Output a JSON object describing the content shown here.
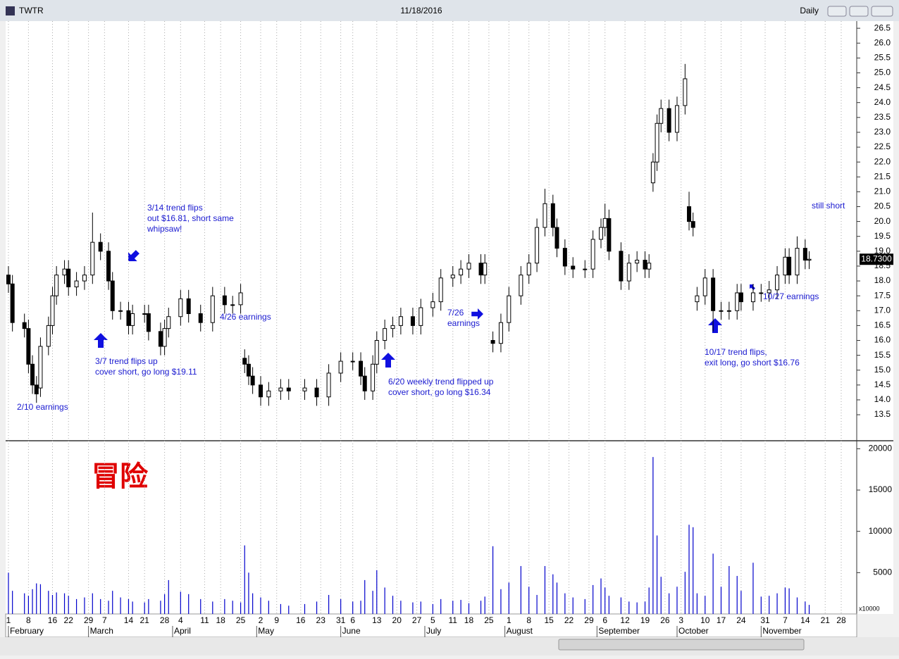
{
  "window": {
    "symbol": "TWTR",
    "date": "11/18/2016",
    "interval": "Daily"
  },
  "watermark": "冒险",
  "chart_data": [
    {
      "type": "candlestick",
      "x": [
        0,
        1,
        4,
        5,
        6,
        7,
        8,
        10,
        11,
        12,
        14,
        15,
        17,
        19,
        21,
        23,
        25,
        26,
        28,
        30,
        31,
        34,
        35,
        38,
        39,
        40,
        43,
        45,
        48,
        51,
        54,
        56,
        58,
        59,
        60,
        61,
        63,
        65,
        68,
        70,
        74,
        77,
        80,
        83,
        86,
        88,
        89,
        91,
        92,
        94,
        96,
        98,
        101,
        103,
        106,
        108,
        111,
        113,
        115,
        118,
        119,
        121,
        123,
        125,
        128,
        130,
        132,
        134,
        136,
        137,
        139,
        141,
        144,
        146,
        148,
        149,
        150,
        153,
        155,
        157,
        159,
        160,
        161,
        162,
        163,
        165,
        167,
        169,
        170,
        171,
        172,
        174,
        176,
        178,
        180,
        182,
        183,
        186,
        188,
        190,
        192,
        194,
        195,
        197,
        199,
        200
      ],
      "open": [
        18.2,
        17.9,
        16.6,
        16.4,
        15.2,
        14.5,
        14.4,
        15.8,
        16.5,
        17.5,
        18.2,
        18.4,
        17.8,
        18.0,
        18.2,
        19.3,
        19.0,
        18.0,
        17.0,
        17.0,
        16.5,
        16.9,
        16.9,
        16.3,
        15.8,
        16.4,
        16.8,
        17.4,
        16.9,
        16.6,
        17.5,
        17.2,
        17.2,
        15.4,
        15.2,
        14.8,
        14.5,
        14.1,
        14.3,
        14.4,
        14.3,
        14.4,
        14.1,
        14.9,
        15.3,
        15.3,
        14.8,
        14.3,
        15.2,
        16.0,
        16.4,
        16.5,
        16.8,
        16.5,
        17.1,
        17.3,
        18.1,
        18.2,
        18.4,
        18.6,
        18.2,
        16.0,
        15.9,
        16.6,
        17.5,
        18.2,
        18.6,
        19.8,
        20.6,
        19.8,
        19.1,
        18.5,
        18.4,
        18.4,
        19.4,
        19.8,
        20.1,
        19.0,
        18.0,
        18.6,
        18.7,
        18.4,
        21.3,
        22.0,
        23.3,
        23.8,
        23.0,
        23.9,
        20.5,
        20.0,
        17.3,
        17.5,
        18.1,
        17.0,
        17.0,
        17.0,
        17.6,
        17.3,
        17.6,
        17.6,
        17.7,
        18.2,
        18.8,
        18.2,
        19.1,
        18.7
      ],
      "high": [
        18.5,
        18.2,
        16.9,
        16.7,
        15.5,
        14.8,
        16.1,
        16.8,
        17.8,
        18.5,
        18.7,
        18.7,
        18.3,
        18.5,
        20.3,
        19.6,
        19.3,
        18.3,
        17.3,
        17.3,
        17.2,
        17.2,
        17.2,
        16.6,
        16.7,
        17.1,
        17.7,
        17.7,
        17.2,
        17.8,
        17.8,
        17.5,
        17.9,
        15.7,
        15.5,
        15.1,
        14.8,
        14.6,
        14.7,
        14.7,
        14.7,
        14.7,
        15.2,
        15.6,
        15.6,
        15.6,
        15.1,
        15.5,
        16.3,
        16.7,
        16.8,
        17.1,
        17.1,
        17.4,
        17.6,
        18.4,
        18.5,
        18.7,
        18.9,
        18.9,
        18.9,
        16.3,
        16.9,
        17.8,
        18.5,
        18.9,
        20.1,
        21.1,
        20.9,
        20.1,
        19.4,
        18.8,
        18.7,
        19.7,
        20.1,
        20.6,
        20.4,
        19.3,
        18.9,
        19.0,
        19.0,
        18.9,
        22.3,
        23.6,
        24.1,
        24.1,
        24.2,
        25.3,
        21.0,
        20.3,
        17.8,
        18.4,
        18.4,
        17.3,
        17.3,
        17.9,
        17.9,
        17.9,
        17.9,
        18.0,
        18.5,
        19.1,
        19.1,
        19.5,
        19.4,
        19.0
      ],
      "low": [
        17.6,
        16.3,
        16.1,
        14.9,
        14.2,
        13.9,
        14.1,
        15.5,
        16.2,
        17.2,
        17.9,
        17.5,
        17.5,
        17.7,
        17.9,
        18.7,
        17.7,
        16.7,
        16.7,
        16.2,
        16.2,
        16.6,
        16.0,
        15.5,
        15.5,
        16.1,
        16.5,
        16.6,
        16.3,
        16.3,
        16.9,
        16.9,
        16.9,
        14.9,
        14.5,
        14.2,
        13.8,
        13.8,
        14.0,
        14.0,
        14.0,
        13.8,
        13.8,
        14.6,
        15.0,
        14.5,
        14.0,
        14.0,
        14.9,
        15.7,
        16.1,
        16.2,
        16.2,
        16.2,
        16.8,
        17.0,
        17.8,
        17.9,
        18.1,
        17.9,
        17.9,
        15.6,
        15.6,
        16.3,
        17.2,
        17.9,
        18.3,
        19.5,
        19.5,
        18.8,
        18.2,
        18.1,
        18.1,
        18.1,
        19.1,
        19.5,
        18.7,
        17.7,
        17.7,
        18.3,
        18.1,
        18.1,
        21.0,
        21.7,
        23.0,
        22.7,
        22.7,
        23.6,
        19.7,
        19.5,
        17.0,
        17.2,
        16.3,
        16.7,
        16.7,
        16.7,
        17.0,
        17.0,
        17.3,
        17.3,
        17.4,
        17.9,
        17.9,
        17.9,
        18.4,
        18.4
      ],
      "close": [
        17.9,
        16.6,
        16.4,
        15.2,
        14.5,
        14.2,
        15.8,
        16.5,
        17.5,
        18.2,
        18.4,
        17.8,
        18.0,
        18.2,
        19.3,
        19.0,
        18.0,
        17.0,
        17.0,
        16.5,
        16.9,
        16.9,
        16.3,
        15.8,
        16.4,
        16.8,
        17.4,
        16.9,
        16.6,
        17.5,
        17.2,
        17.2,
        17.6,
        15.2,
        14.8,
        14.5,
        14.1,
        14.3,
        14.4,
        14.3,
        14.4,
        14.1,
        14.9,
        15.3,
        15.3,
        14.8,
        14.3,
        15.2,
        16.0,
        16.4,
        16.5,
        16.8,
        16.5,
        17.1,
        17.3,
        18.1,
        18.2,
        18.4,
        18.6,
        18.2,
        18.6,
        15.9,
        16.6,
        17.5,
        18.2,
        18.6,
        19.8,
        20.6,
        19.8,
        19.1,
        18.5,
        18.4,
        18.4,
        19.4,
        19.8,
        20.1,
        19.0,
        18.0,
        18.6,
        18.7,
        18.4,
        18.6,
        22.0,
        23.3,
        23.8,
        23.0,
        23.9,
        24.8,
        20.0,
        19.8,
        17.5,
        18.1,
        17.0,
        17.0,
        17.0,
        17.6,
        17.3,
        17.6,
        17.6,
        17.7,
        18.2,
        18.8,
        18.2,
        19.1,
        18.7,
        18.73
      ],
      "last_price": {
        "value": 18.73,
        "label": "18.7300"
      },
      "xlim": [
        -0.7,
        211.7
      ],
      "xticks": [
        {
          "value": 0,
          "label": "1"
        },
        {
          "value": 5,
          "label": "8"
        },
        {
          "value": 11,
          "label": "16"
        },
        {
          "value": 15,
          "label": "22"
        },
        {
          "value": 20,
          "label": "29"
        },
        {
          "value": 24,
          "label": "7"
        },
        {
          "value": 30,
          "label": "14"
        },
        {
          "value": 34,
          "label": "21"
        },
        {
          "value": 39,
          "label": "28"
        },
        {
          "value": 43,
          "label": "4"
        },
        {
          "value": 49,
          "label": "11"
        },
        {
          "value": 53,
          "label": "18"
        },
        {
          "value": 58,
          "label": "25"
        },
        {
          "value": 63,
          "label": "2"
        },
        {
          "value": 67,
          "label": "9"
        },
        {
          "value": 73,
          "label": "16"
        },
        {
          "value": 78,
          "label": "23"
        },
        {
          "value": 83,
          "label": "31"
        },
        {
          "value": 86,
          "label": "6"
        },
        {
          "value": 92,
          "label": "13"
        },
        {
          "value": 97,
          "label": "20"
        },
        {
          "value": 102,
          "label": "27"
        },
        {
          "value": 106,
          "label": "5"
        },
        {
          "value": 111,
          "label": "11"
        },
        {
          "value": 115,
          "label": "18"
        },
        {
          "value": 120,
          "label": "25"
        },
        {
          "value": 125,
          "label": "1"
        },
        {
          "value": 130,
          "label": "8"
        },
        {
          "value": 135,
          "label": "15"
        },
        {
          "value": 140,
          "label": "22"
        },
        {
          "value": 145,
          "label": "29"
        },
        {
          "value": 149,
          "label": "6"
        },
        {
          "value": 154,
          "label": "12"
        },
        {
          "value": 159,
          "label": "19"
        },
        {
          "value": 164,
          "label": "26"
        },
        {
          "value": 168,
          "label": "3"
        },
        {
          "value": 174,
          "label": "10"
        },
        {
          "value": 178,
          "label": "17"
        },
        {
          "value": 183,
          "label": "24"
        },
        {
          "value": 189,
          "label": "31"
        },
        {
          "value": 194,
          "label": "7"
        },
        {
          "value": 199,
          "label": "14"
        },
        {
          "value": 204,
          "label": "21"
        },
        {
          "value": 208,
          "label": "28"
        }
      ],
      "month_ticks": [
        {
          "value": 0,
          "label": "February"
        },
        {
          "value": 20,
          "label": "March"
        },
        {
          "value": 41,
          "label": "April"
        },
        {
          "value": 62,
          "label": "May"
        },
        {
          "value": 83,
          "label": "June"
        },
        {
          "value": 104,
          "label": "July"
        },
        {
          "value": 124,
          "label": "August"
        },
        {
          "value": 147,
          "label": "September"
        },
        {
          "value": 167,
          "label": "October"
        },
        {
          "value": 188,
          "label": "November"
        }
      ],
      "ylim": [
        12.72,
        26.74
      ],
      "yticks": [
        13.5,
        {
          "value": 14,
          "label": "14.0"
        },
        14.5,
        {
          "value": 15,
          "label": "15.0"
        },
        15.5,
        {
          "value": 16,
          "label": "16.0"
        },
        16.5,
        {
          "value": 17,
          "label": "17.0"
        },
        17.5,
        {
          "value": 18,
          "label": "18.0"
        },
        18.5,
        {
          "value": 19,
          "label": "19.0"
        },
        19.5,
        {
          "value": 20,
          "label": "20.0"
        },
        20.5,
        {
          "value": 21,
          "label": "21.0"
        },
        21.5,
        {
          "value": 22,
          "label": "22.0"
        },
        22.5,
        {
          "value": 23,
          "label": "23.0"
        },
        23.5,
        {
          "value": 24,
          "label": "24.0"
        },
        24.5,
        {
          "value": 25,
          "label": "25.0"
        },
        25.5,
        {
          "value": 26,
          "label": "26.0"
        },
        26.5
      ],
      "grid": true,
      "annotations": [
        "2/10 earnings",
        "3/7 trend flips up",
        "cover short, go long $19.11",
        "3/14 trend flips",
        "out $16.81, short same",
        "whipsaw!",
        "4/26 earnings",
        "6/20 weekly trend flipped up",
        "cover short, go long $16.34",
        "7/26",
        "earnings",
        "10/17 trend flips,",
        "exit long, go short $16.76",
        "10/27 earnings",
        "still short"
      ]
    },
    {
      "type": "bar",
      "color": "#0000cc",
      "x": [
        0,
        1,
        4,
        5,
        6,
        7,
        8,
        10,
        11,
        12,
        14,
        15,
        17,
        19,
        21,
        23,
        25,
        26,
        28,
        30,
        31,
        34,
        35,
        38,
        39,
        40,
        43,
        45,
        48,
        51,
        54,
        56,
        58,
        59,
        60,
        61,
        63,
        65,
        68,
        70,
        74,
        77,
        80,
        83,
        86,
        88,
        89,
        91,
        92,
        94,
        96,
        98,
        101,
        103,
        106,
        108,
        111,
        113,
        115,
        118,
        119,
        121,
        123,
        125,
        128,
        130,
        132,
        134,
        136,
        137,
        139,
        141,
        144,
        146,
        148,
        149,
        150,
        153,
        155,
        157,
        159,
        160,
        161,
        162,
        163,
        165,
        167,
        169,
        170,
        171,
        172,
        174,
        176,
        178,
        180,
        182,
        183,
        186,
        188,
        190,
        192,
        194,
        195,
        197,
        199,
        200
      ],
      "values": [
        5000,
        2800,
        2500,
        2200,
        3000,
        3700,
        3600,
        2800,
        2300,
        2600,
        2500,
        2200,
        1800,
        2000,
        2500,
        1800,
        1600,
        2800,
        2000,
        1800,
        1500,
        1400,
        1800,
        1600,
        2400,
        4100,
        2700,
        2400,
        1800,
        1500,
        1800,
        1600,
        1400,
        8300,
        5000,
        2500,
        2000,
        1600,
        1200,
        1000,
        1200,
        1500,
        2300,
        1800,
        1500,
        1600,
        4100,
        2800,
        5300,
        3200,
        2200,
        1600,
        1400,
        1500,
        1200,
        1800,
        1600,
        1700,
        1300,
        1600,
        2100,
        8200,
        3000,
        3800,
        5800,
        3300,
        2300,
        5800,
        4800,
        3800,
        2500,
        2000,
        1800,
        3500,
        4300,
        3200,
        2200,
        2000,
        1500,
        1400,
        1500,
        3200,
        19000,
        9500,
        4500,
        2500,
        3300,
        5100,
        10800,
        10500,
        2500,
        2200,
        7300,
        3300,
        5800,
        4600,
        2800,
        6200,
        2100,
        2200,
        2500,
        3200,
        3100,
        2000,
        1500,
        1100
      ],
      "ylim": [
        0,
        20800
      ],
      "yticks": [
        5000,
        10000,
        15000,
        20000
      ],
      "unit_label": "x10000"
    }
  ]
}
